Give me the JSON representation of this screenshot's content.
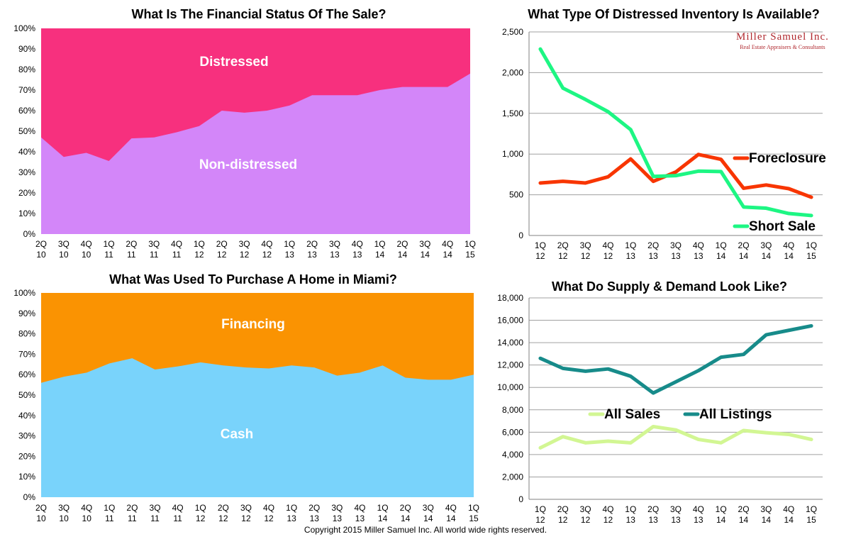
{
  "colors": {
    "distressed": "#f7307e",
    "non_distressed": "#d386f9",
    "financing": "#fa9302",
    "cash": "#79d3fb",
    "foreclosure": "#f83500",
    "short_sale": "#1df683",
    "all_sales": "#d2f693",
    "all_listings": "#178b8a",
    "grid": "#a0a0a0"
  },
  "logo": {
    "name": "Miller Samuel Inc.",
    "tagline": "Real Estate Appraisers & Consultants"
  },
  "copyright": "Copyright 2015 Miller Samuel Inc. All world wide rights reserved.",
  "chart_data": [
    {
      "id": "financial",
      "type": "area",
      "stacked": "percent",
      "title": "What Is The Financial Status Of The Sale?",
      "categories": [
        [
          "2Q",
          "10"
        ],
        [
          "3Q",
          "10"
        ],
        [
          "4Q",
          "10"
        ],
        [
          "1Q",
          "11"
        ],
        [
          "2Q",
          "11"
        ],
        [
          "3Q",
          "11"
        ],
        [
          "4Q",
          "11"
        ],
        [
          "1Q",
          "12"
        ],
        [
          "2Q",
          "12"
        ],
        [
          "3Q",
          "12"
        ],
        [
          "4Q",
          "12"
        ],
        [
          "1Q",
          "13"
        ],
        [
          "2Q",
          "13"
        ],
        [
          "3Q",
          "13"
        ],
        [
          "4Q",
          "13"
        ],
        [
          "1Q",
          "14"
        ],
        [
          "2Q",
          "14"
        ],
        [
          "3Q",
          "14"
        ],
        [
          "4Q",
          "14"
        ],
        [
          "1Q",
          "15"
        ]
      ],
      "ylim": [
        0,
        100
      ],
      "yticks": [
        "0%",
        "10%",
        "20%",
        "30%",
        "40%",
        "50%",
        "60%",
        "70%",
        "80%",
        "90%",
        "100%"
      ],
      "series": [
        {
          "name": "Non-distressed",
          "values": [
            47,
            37.5,
            39.5,
            35.5,
            46.5,
            47,
            49.5,
            52.5,
            60,
            59,
            60,
            62.5,
            67.5,
            67.5,
            67.5,
            70,
            71.5,
            71.5,
            71.5,
            78
          ]
        },
        {
          "name": "Distressed",
          "values": [
            53,
            62.5,
            60.5,
            64.5,
            53.5,
            53,
            50.5,
            47.5,
            40,
            41,
            40,
            37.5,
            32.5,
            32.5,
            32.5,
            30,
            28.5,
            28.5,
            28.5,
            22
          ]
        }
      ]
    },
    {
      "id": "distressed_inventory",
      "type": "line",
      "title": "What Type Of Distressed Inventory Is Available?",
      "categories": [
        [
          "1Q",
          "12"
        ],
        [
          "2Q",
          "12"
        ],
        [
          "3Q",
          "12"
        ],
        [
          "4Q",
          "12"
        ],
        [
          "1Q",
          "13"
        ],
        [
          "2Q",
          "13"
        ],
        [
          "3Q",
          "13"
        ],
        [
          "4Q",
          "13"
        ],
        [
          "1Q",
          "14"
        ],
        [
          "2Q",
          "14"
        ],
        [
          "3Q",
          "14"
        ],
        [
          "4Q",
          "14"
        ],
        [
          "1Q",
          "15"
        ]
      ],
      "ylim": [
        0,
        2500
      ],
      "yticks": [
        "0",
        "500",
        "1,000",
        "1,500",
        "2,000",
        "2,500"
      ],
      "series": [
        {
          "name": "Foreclosure",
          "values": [
            645,
            665,
            645,
            720,
            940,
            665,
            780,
            995,
            935,
            580,
            620,
            575,
            470
          ]
        },
        {
          "name": "Short Sale",
          "values": [
            2290,
            1810,
            1670,
            1520,
            1300,
            725,
            735,
            790,
            785,
            350,
            335,
            270,
            245
          ]
        }
      ]
    },
    {
      "id": "purchase",
      "type": "area",
      "stacked": "percent",
      "title": "What Was Used To Purchase A Home in Miami?",
      "categories": [
        [
          "2Q",
          "10"
        ],
        [
          "3Q",
          "10"
        ],
        [
          "4Q",
          "10"
        ],
        [
          "1Q",
          "11"
        ],
        [
          "2Q",
          "11"
        ],
        [
          "3Q",
          "11"
        ],
        [
          "4Q",
          "11"
        ],
        [
          "1Q",
          "12"
        ],
        [
          "2Q",
          "12"
        ],
        [
          "3Q",
          "12"
        ],
        [
          "4Q",
          "12"
        ],
        [
          "1Q",
          "13"
        ],
        [
          "2Q",
          "13"
        ],
        [
          "3Q",
          "13"
        ],
        [
          "4Q",
          "13"
        ],
        [
          "1Q",
          "14"
        ],
        [
          "2Q",
          "14"
        ],
        [
          "3Q",
          "14"
        ],
        [
          "4Q",
          "14"
        ],
        [
          "1Q",
          "15"
        ]
      ],
      "ylim": [
        0,
        100
      ],
      "yticks": [
        "0%",
        "10%",
        "20%",
        "30%",
        "40%",
        "50%",
        "60%",
        "70%",
        "80%",
        "90%",
        "100%"
      ],
      "series": [
        {
          "name": "Cash",
          "values": [
            56,
            59,
            61,
            65.5,
            68,
            62.5,
            64,
            66,
            64.5,
            63.5,
            63,
            64.5,
            63.5,
            59.5,
            61,
            64.5,
            58.5,
            57.5,
            57.5,
            60
          ]
        },
        {
          "name": "Financing",
          "values": [
            44,
            41,
            39,
            34.5,
            32,
            37.5,
            36,
            34,
            35.5,
            36.5,
            37,
            35.5,
            36.5,
            40.5,
            39,
            35.5,
            41.5,
            42.5,
            42.5,
            40
          ]
        }
      ]
    },
    {
      "id": "supply_demand",
      "type": "line",
      "title": "What Do Supply & Demand Look Like?",
      "categories": [
        [
          "1Q",
          "12"
        ],
        [
          "2Q",
          "12"
        ],
        [
          "3Q",
          "12"
        ],
        [
          "4Q",
          "12"
        ],
        [
          "1Q",
          "13"
        ],
        [
          "2Q",
          "13"
        ],
        [
          "3Q",
          "13"
        ],
        [
          "4Q",
          "13"
        ],
        [
          "1Q",
          "14"
        ],
        [
          "2Q",
          "14"
        ],
        [
          "3Q",
          "14"
        ],
        [
          "4Q",
          "14"
        ],
        [
          "1Q",
          "15"
        ]
      ],
      "ylim": [
        0,
        18000
      ],
      "yticks": [
        "0",
        "2,000",
        "4,000",
        "6,000",
        "8,000",
        "10,000",
        "12,000",
        "14,000",
        "16,000",
        "18,000"
      ],
      "series": [
        {
          "name": "All Sales",
          "values": [
            4600,
            5600,
            5050,
            5200,
            5050,
            6500,
            6200,
            5350,
            5050,
            6150,
            5950,
            5800,
            5350
          ]
        },
        {
          "name": "All Listings",
          "values": [
            12600,
            11700,
            11450,
            11650,
            11000,
            9500,
            10500,
            11500,
            12700,
            12950,
            14700,
            15100,
            15500
          ]
        }
      ]
    }
  ]
}
